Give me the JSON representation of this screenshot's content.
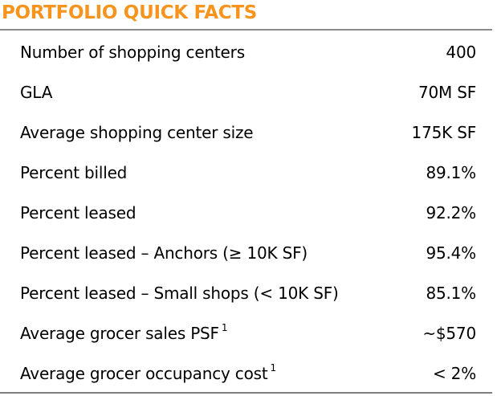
{
  "title": "PORTFOLIO QUICK FACTS",
  "colors": {
    "title": "#f7941d",
    "rule": "#8c8c8c",
    "text": "#000000"
  },
  "facts": [
    {
      "label": "Number of shopping centers",
      "footnote": "",
      "value": "400"
    },
    {
      "label": "GLA",
      "footnote": "",
      "value": "70M SF"
    },
    {
      "label": "Average shopping center size",
      "footnote": "",
      "value": "175K SF"
    },
    {
      "label": "Percent billed",
      "footnote": "",
      "value": "89.1%"
    },
    {
      "label": "Percent leased",
      "footnote": "",
      "value": "92.2%"
    },
    {
      "label": "Percent leased – Anchors (≥ 10K SF)",
      "footnote": "",
      "value": "95.4%"
    },
    {
      "label": "Percent leased – Small shops (< 10K SF)",
      "footnote": "",
      "value": "85.1%"
    },
    {
      "label": "Average grocer sales PSF",
      "footnote": "1",
      "value": "~$570"
    },
    {
      "label": "Average grocer occupancy cost",
      "footnote": "1",
      "value": "< 2%"
    }
  ]
}
